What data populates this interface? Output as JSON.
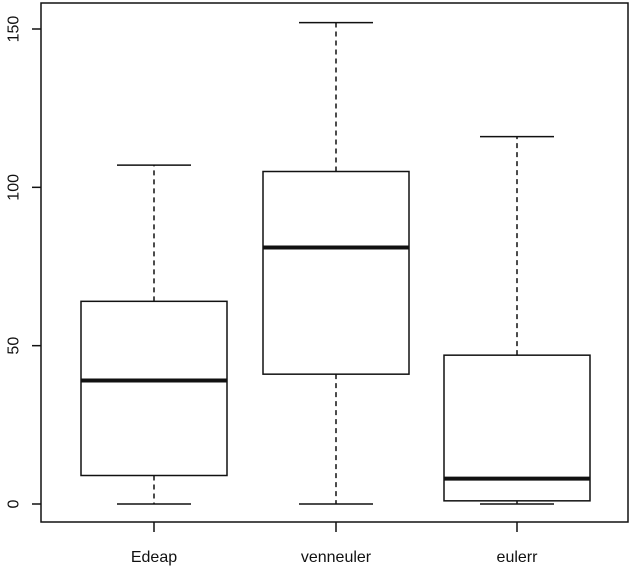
{
  "chart_data": {
    "type": "box",
    "title": "",
    "xlabel": "",
    "ylabel": "",
    "categories": [
      "Edeap",
      "venneuler",
      "eulerr"
    ],
    "ylim": [
      -6,
      158
    ],
    "yticks": [
      0,
      50,
      100,
      150
    ],
    "ytick_labels": [
      "0",
      "50",
      "100",
      "150"
    ],
    "boxes": [
      {
        "name": "Edeap",
        "min": 0,
        "q1": 9,
        "median": 39,
        "q3": 64,
        "max": 107
      },
      {
        "name": "venneuler",
        "min": 0,
        "q1": 41,
        "median": 81,
        "q3": 105,
        "max": 152
      },
      {
        "name": "eulerr",
        "min": 0,
        "q1": 1,
        "median": 8,
        "q3": 47,
        "max": 116
      }
    ],
    "grid": false,
    "colors": {
      "stroke": "#111111",
      "background": "#ffffff"
    }
  }
}
